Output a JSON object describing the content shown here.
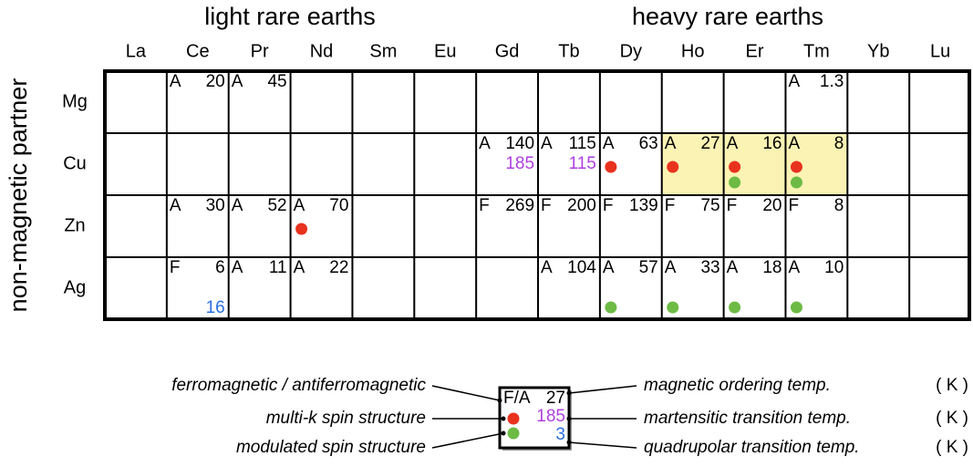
{
  "table": {
    "group_labels": [
      "light rare earths",
      "heavy rare earths"
    ],
    "columns": [
      "La",
      "Ce",
      "Pr",
      "Nd",
      "Sm",
      "Eu",
      "Gd",
      "Tb",
      "Dy",
      "Ho",
      "Er",
      "Tm",
      "Yb",
      "Lu"
    ],
    "row_axis_label": "non-magnetic partner",
    "rows": [
      {
        "label": "Mg",
        "cells": [
          null,
          {
            "type": "A",
            "temp": "20"
          },
          {
            "type": "A",
            "temp": "45"
          },
          null,
          null,
          null,
          null,
          null,
          null,
          null,
          null,
          {
            "type": "A",
            "temp": "1.3"
          },
          null,
          null
        ]
      },
      {
        "label": "Cu",
        "cells": [
          null,
          null,
          null,
          null,
          null,
          null,
          {
            "type": "A",
            "temp": "140",
            "martensitic": "185"
          },
          {
            "type": "A",
            "temp": "115",
            "martensitic": "115"
          },
          {
            "type": "A",
            "temp": "63",
            "multi_k": true
          },
          {
            "type": "A",
            "temp": "27",
            "multi_k": true,
            "highlight": true
          },
          {
            "type": "A",
            "temp": "16",
            "multi_k": true,
            "modulated": true,
            "highlight": true
          },
          {
            "type": "A",
            "temp": "8",
            "multi_k": true,
            "modulated": true,
            "highlight": true
          },
          null,
          null
        ]
      },
      {
        "label": "Zn",
        "cells": [
          null,
          {
            "type": "A",
            "temp": "30"
          },
          {
            "type": "A",
            "temp": "52"
          },
          {
            "type": "A",
            "temp": "70",
            "multi_k": true
          },
          null,
          null,
          {
            "type": "F",
            "temp": "269"
          },
          {
            "type": "F",
            "temp": "200"
          },
          {
            "type": "F",
            "temp": "139"
          },
          {
            "type": "F",
            "temp": "75"
          },
          {
            "type": "F",
            "temp": "20"
          },
          {
            "type": "F",
            "temp": "8"
          },
          null,
          null
        ]
      },
      {
        "label": "Ag",
        "cells": [
          null,
          {
            "type": "F",
            "temp": "6",
            "quadrupolar": "16"
          },
          {
            "type": "A",
            "temp": "11"
          },
          {
            "type": "A",
            "temp": "22"
          },
          null,
          null,
          null,
          {
            "type": "A",
            "temp": "104"
          },
          {
            "type": "A",
            "temp": "57",
            "modulated": true
          },
          {
            "type": "A",
            "temp": "33",
            "modulated": true
          },
          {
            "type": "A",
            "temp": "18",
            "modulated": true
          },
          {
            "type": "A",
            "temp": "10",
            "modulated": true
          },
          null,
          null
        ]
      }
    ]
  },
  "legend": {
    "box": {
      "type": "F/A",
      "temp": "27",
      "martensitic": "185",
      "quadrupolar": "3"
    },
    "left": [
      "ferromagnetic / antiferromagnetic",
      "multi-k spin structure",
      "modulated spin structure"
    ],
    "right": [
      "magnetic ordering temp.",
      "martensitic transition temp.",
      "quadrupolar transition temp."
    ],
    "units": [
      "( K )",
      "( K )",
      "( K )"
    ]
  }
}
